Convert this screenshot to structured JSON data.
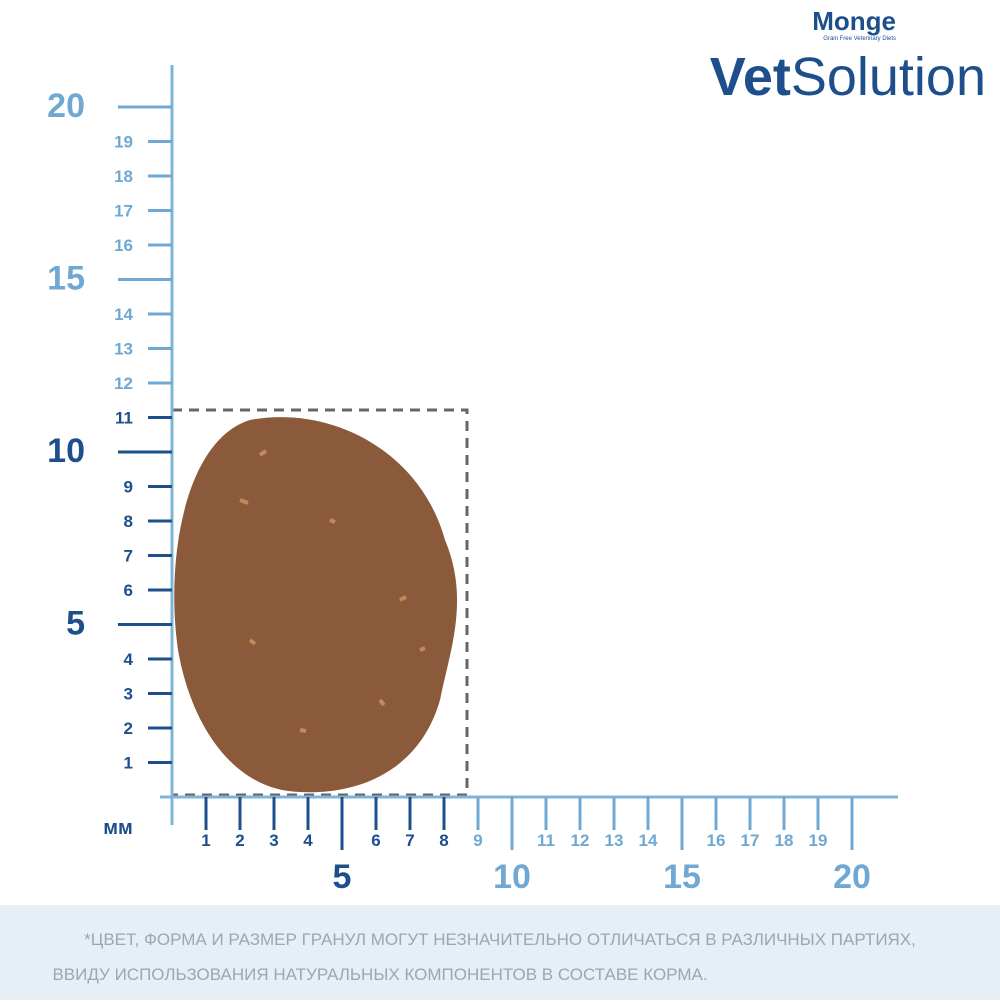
{
  "brand": {
    "name": "Monge",
    "tagline": "Grain Free Veterinary Diets",
    "product_bold": "Vet",
    "product_light": "Solution"
  },
  "ruler": {
    "unit": "мм",
    "y_ticks": [
      1,
      2,
      3,
      4,
      5,
      6,
      7,
      8,
      9,
      10,
      11,
      12,
      13,
      14,
      15,
      16,
      17,
      18,
      19,
      20
    ],
    "x_ticks": [
      1,
      2,
      3,
      4,
      5,
      6,
      7,
      8,
      9,
      10,
      11,
      12,
      13,
      14,
      15,
      16,
      17,
      18,
      19,
      20
    ]
  },
  "footnote": [
    "*ЦВЕТ, ФОРМА И РАЗМЕР ГРАНУЛ МОГУТ НЕЗНАЧИТЕЛЬНО ОТЛИЧАТЬСЯ В РАЗЛИЧНЫХ ПАРТИЯХ,",
    "ВВИДУ ИСПОЛЬЗОВАНИЯ НАТУРАЛЬНЫХ КОМПОНЕНТОВ В СОСТАВЕ КОРМА."
  ]
}
